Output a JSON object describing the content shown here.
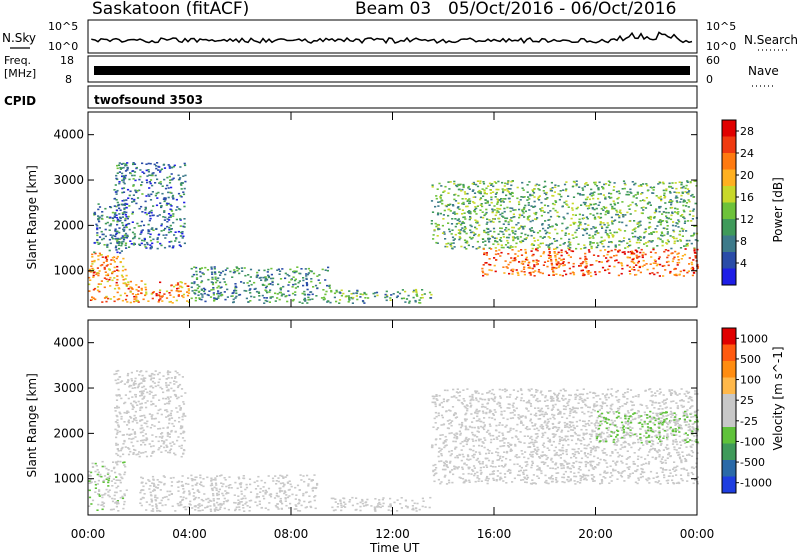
{
  "header": {
    "station": "Saskatoon (fitACF)",
    "beam": "Beam 03",
    "dates": "05/Oct/2016 - 06/Oct/2016"
  },
  "summary": {
    "nsky_label": "N.Sky",
    "nsky_tick_top": "10^5",
    "nsky_tick_bottom": "10^0",
    "nsearch_label": "N.Search",
    "nsearch_tick_top": "10^5",
    "nsearch_tick_bottom": "10^0",
    "freq_label": "Freq.",
    "freq_unit": "[MHz]",
    "freq_tick_top": "18",
    "freq_tick_bottom": "8",
    "nave_label": "Nave",
    "nave_tick_top": "60",
    "nave_tick_bottom": "0",
    "cpid_label": "CPID",
    "cpid_value": "twofsound 3503"
  },
  "xaxis": {
    "label": "Time UT",
    "ticks": [
      "00:00",
      "04:00",
      "08:00",
      "12:00",
      "16:00",
      "20:00",
      "00:00"
    ]
  },
  "colors": {
    "power": [
      "#1e1ee6",
      "#2a4ca8",
      "#3d7a8a",
      "#3f9a5a",
      "#6dc23a",
      "#c8d82a",
      "#ffb020",
      "#ff7a10",
      "#f03a10",
      "#e00000"
    ],
    "velocity": [
      "#e00000",
      "#ff5a10",
      "#ff8c10",
      "#ffb84a",
      "#c8c8c8",
      "#c8c8c8",
      "#5fc23a",
      "#3f9a5a",
      "#2a6aa8",
      "#1e3ee0"
    ]
  },
  "chart_data": [
    {
      "type": "heatmap",
      "name": "power-panel",
      "ylabel": "Slant Range [km]",
      "yticks": [
        "1000",
        "2000",
        "3000",
        "4000"
      ],
      "ylim": [
        200,
        4500
      ],
      "xlim_hours": [
        0,
        24
      ],
      "colorbar": {
        "label": "Power [dB]",
        "ticks": [
          "4",
          "8",
          "12",
          "16",
          "20",
          "24",
          "28"
        ],
        "range": [
          0,
          30
        ]
      },
      "regions": [
        {
          "t0": 0.0,
          "t1": 1.5,
          "r0": 300,
          "r1": 1400,
          "v": 22
        },
        {
          "t0": 0.2,
          "t1": 1.5,
          "r0": 1400,
          "r1": 2500,
          "v": 8
        },
        {
          "t0": 1.0,
          "t1": 3.8,
          "r0": 1500,
          "r1": 3400,
          "v": 7
        },
        {
          "t0": 1.5,
          "t1": 4.0,
          "r0": 300,
          "r1": 800,
          "v": 22
        },
        {
          "t0": 4.0,
          "t1": 9.5,
          "r0": 300,
          "r1": 1100,
          "v": 9
        },
        {
          "t0": 9.5,
          "t1": 13.5,
          "r0": 300,
          "r1": 600,
          "v": 11
        },
        {
          "t0": 13.5,
          "t1": 24.0,
          "r0": 1500,
          "r1": 3000,
          "v": 12
        },
        {
          "t0": 15.5,
          "t1": 24.0,
          "r0": 900,
          "r1": 1500,
          "v": 24
        }
      ]
    },
    {
      "type": "heatmap",
      "name": "velocity-panel",
      "ylabel": "Slant Range [km]",
      "yticks": [
        "1000",
        "2000",
        "3000",
        "4000"
      ],
      "ylim": [
        200,
        4500
      ],
      "xlim_hours": [
        0,
        24
      ],
      "colorbar": {
        "label": "Velocity [m s^-1]",
        "ticks": [
          "1000",
          "500",
          "100",
          "25",
          "-25",
          "-100",
          "-500",
          "-1000"
        ],
        "range": [
          -1250,
          1250
        ]
      },
      "regions": [
        {
          "t0": 0.0,
          "t1": 1.5,
          "r0": 300,
          "r1": 1400,
          "v": -150
        },
        {
          "t0": 1.0,
          "t1": 3.8,
          "r0": 1500,
          "r1": 3400,
          "v": 0
        },
        {
          "t0": 2.0,
          "t1": 9.0,
          "r0": 300,
          "r1": 1100,
          "v": 60
        },
        {
          "t0": 9.5,
          "t1": 13.5,
          "r0": 300,
          "r1": 600,
          "v": -80
        },
        {
          "t0": 13.5,
          "t1": 24.0,
          "r0": 900,
          "r1": 3000,
          "v": 0
        },
        {
          "t0": 20.0,
          "t1": 24.0,
          "r0": 1800,
          "r1": 2500,
          "v": -300
        }
      ]
    }
  ]
}
